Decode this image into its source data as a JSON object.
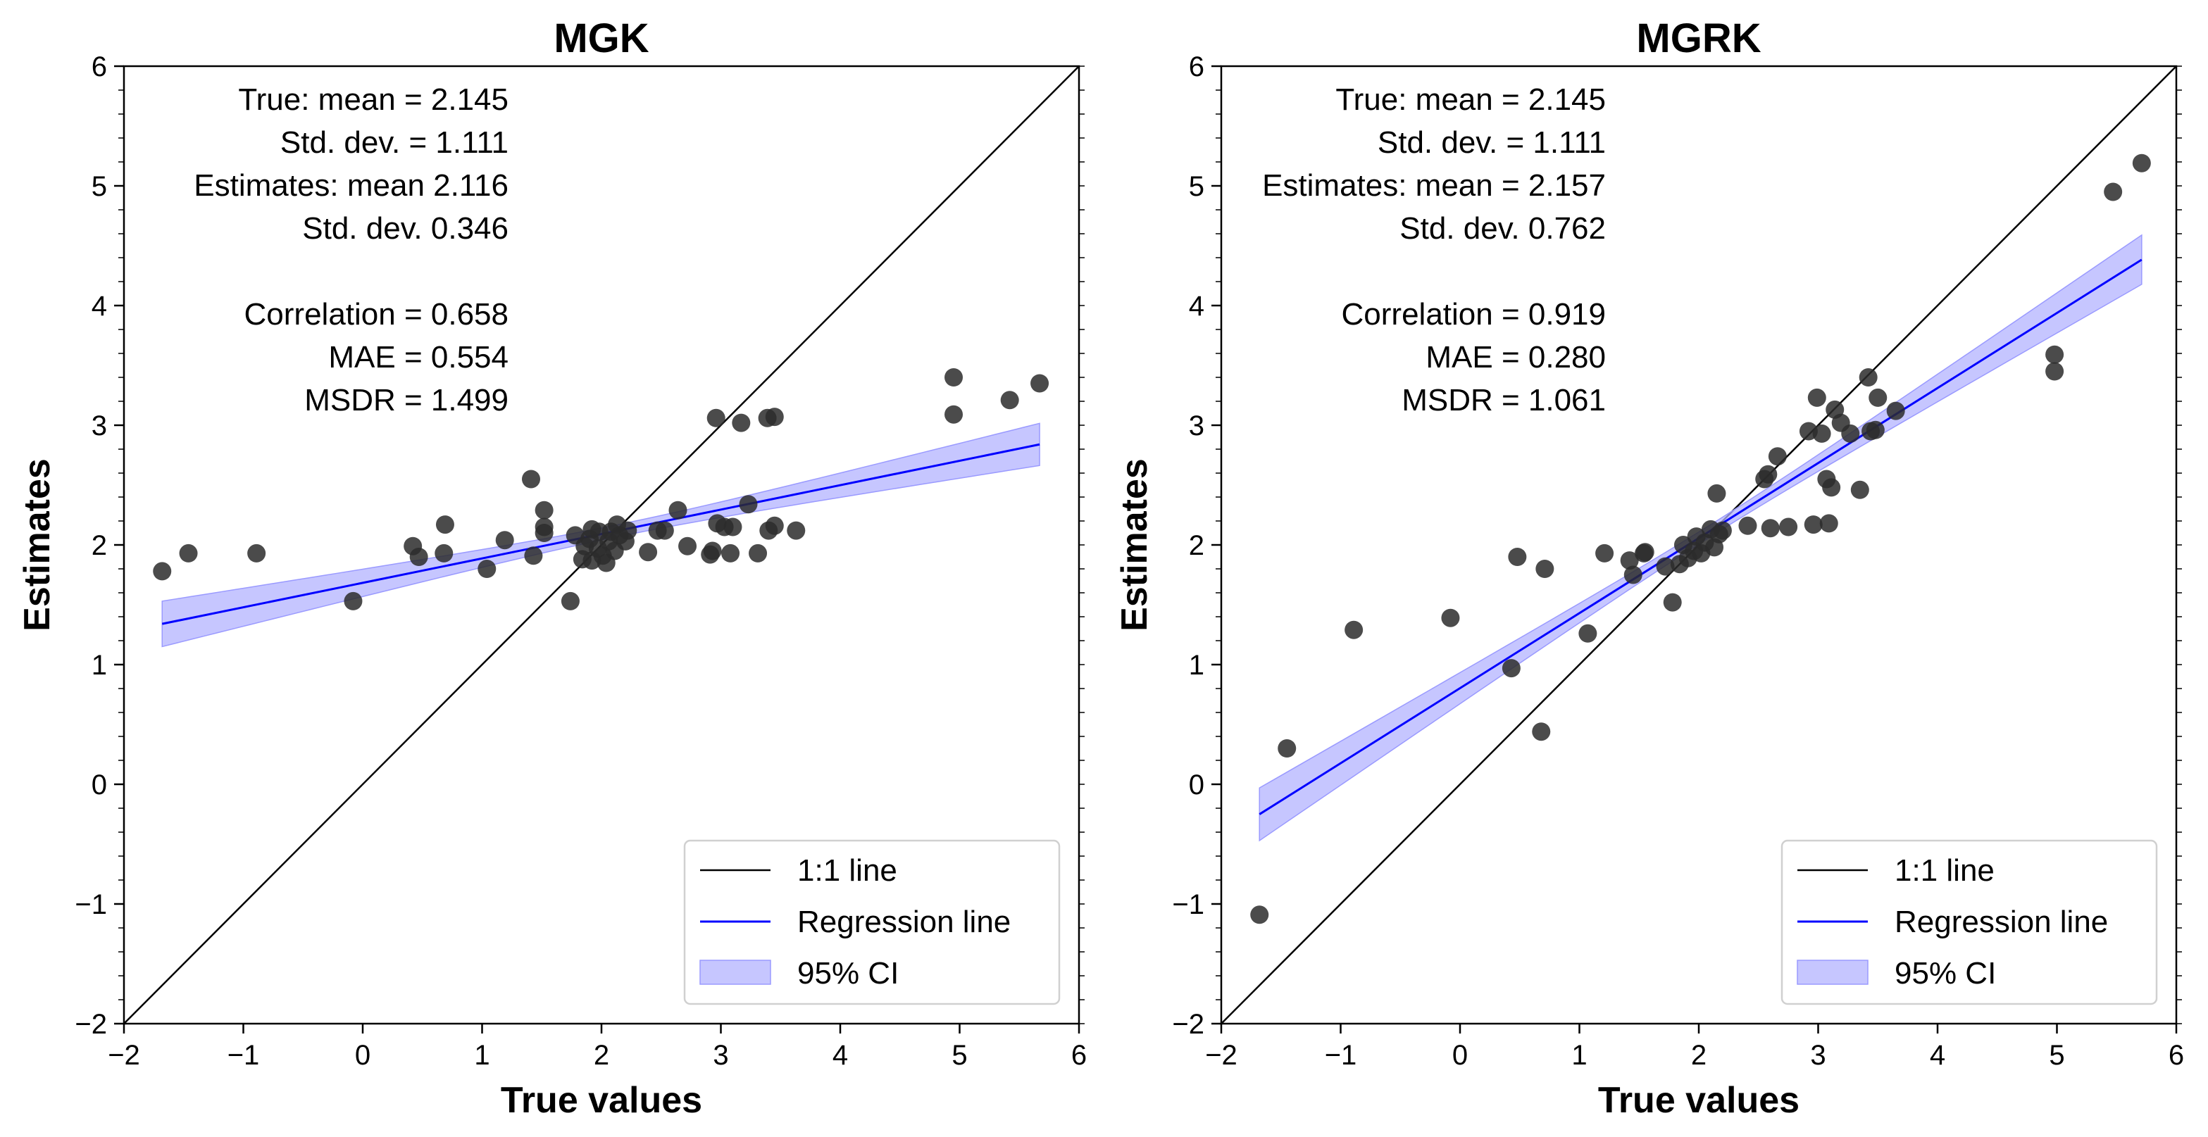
{
  "chart_data": [
    {
      "type": "scatter",
      "title": "MGK",
      "xlabel": "True values",
      "ylabel": "Estimates",
      "xlim": [
        -2,
        6
      ],
      "ylim": [
        -2,
        6
      ],
      "xticks": [
        -2,
        -1,
        0,
        1,
        2,
        3,
        4,
        5,
        6
      ],
      "yticks": [
        -2,
        -1,
        0,
        1,
        2,
        3,
        4,
        5,
        6
      ],
      "tick_labels": [
        "−2",
        "−1",
        "0",
        "1",
        "2",
        "3",
        "4",
        "5",
        "6"
      ],
      "annotation": [
        "True: mean = 2.145",
        "Std. dev. = 1.111",
        "Estimates: mean 2.116",
        "Std. dev. 0.346",
        "",
        "Correlation = 0.658",
        "MAE = 0.554",
        "MSDR = 1.499"
      ],
      "legend": {
        "placement": "lower-right",
        "entries": [
          "1:1 line",
          "Regression line",
          "95% CI"
        ]
      },
      "regression": {
        "slope": 0.204,
        "intercept": 1.683,
        "x_range": [
          -1.68,
          5.67
        ],
        "ci_halfwidth_end": 0.19,
        "ci_halfwidth_min": 0.05,
        "x_mean": 2.145
      },
      "points": [
        [
          -1.68,
          1.78
        ],
        [
          -1.46,
          1.93
        ],
        [
          -0.89,
          1.93
        ],
        [
          -0.08,
          1.53
        ],
        [
          0.42,
          1.99
        ],
        [
          0.47,
          1.9
        ],
        [
          0.69,
          2.17
        ],
        [
          0.68,
          1.93
        ],
        [
          1.04,
          1.8
        ],
        [
          1.19,
          2.04
        ],
        [
          1.41,
          2.55
        ],
        [
          1.43,
          1.91
        ],
        [
          1.52,
          2.29
        ],
        [
          1.52,
          2.15
        ],
        [
          1.52,
          2.1
        ],
        [
          1.74,
          1.53
        ],
        [
          1.78,
          2.08
        ],
        [
          1.86,
          1.99
        ],
        [
          1.92,
          1.87
        ],
        [
          1.98,
          2.11
        ],
        [
          2.01,
          1.91
        ],
        [
          2.06,
          2.03
        ],
        [
          2.11,
          1.95
        ],
        [
          2.15,
          2.08
        ],
        [
          2.13,
          2.17
        ],
        [
          2.2,
          2.03
        ],
        [
          2.04,
          1.85
        ],
        [
          1.84,
          1.88
        ],
        [
          1.9,
          2.05
        ],
        [
          1.97,
          1.97
        ],
        [
          2.22,
          2.12
        ],
        [
          1.92,
          2.13
        ],
        [
          2.08,
          2.11
        ],
        [
          2.39,
          1.94
        ],
        [
          2.47,
          2.12
        ],
        [
          2.53,
          2.12
        ],
        [
          2.64,
          2.29
        ],
        [
          2.72,
          1.99
        ],
        [
          2.91,
          1.92
        ],
        [
          2.93,
          1.95
        ],
        [
          2.96,
          3.06
        ],
        [
          2.97,
          2.18
        ],
        [
          3.03,
          2.15
        ],
        [
          3.08,
          1.93
        ],
        [
          3.1,
          2.15
        ],
        [
          3.17,
          3.02
        ],
        [
          3.23,
          2.34
        ],
        [
          3.31,
          1.93
        ],
        [
          3.39,
          3.06
        ],
        [
          3.4,
          2.12
        ],
        [
          3.45,
          3.07
        ],
        [
          3.45,
          2.16
        ],
        [
          3.63,
          2.12
        ],
        [
          4.95,
          3.4
        ],
        [
          4.95,
          3.09
        ],
        [
          5.42,
          3.21
        ],
        [
          5.67,
          3.35
        ]
      ]
    },
    {
      "type": "scatter",
      "title": "MGRK",
      "xlabel": "True values",
      "ylabel": "Estimates",
      "xlim": [
        -2,
        6
      ],
      "ylim": [
        -2,
        6
      ],
      "xticks": [
        -2,
        -1,
        0,
        1,
        2,
        3,
        4,
        5,
        6
      ],
      "yticks": [
        -2,
        -1,
        0,
        1,
        2,
        3,
        4,
        5,
        6
      ],
      "tick_labels": [
        "−2",
        "−1",
        "0",
        "1",
        "2",
        "3",
        "4",
        "5",
        "6"
      ],
      "annotation": [
        "True: mean = 2.145",
        "Std. dev. = 1.111",
        "Estimates: mean = 2.157",
        "Std. dev. 0.762",
        "",
        "Correlation = 0.919",
        "MAE = 0.280",
        "MSDR = 1.061"
      ],
      "legend": {
        "placement": "lower-right",
        "entries": [
          "1:1 line",
          "Regression line",
          "95% CI"
        ]
      },
      "regression": {
        "slope": 0.627,
        "intercept": 0.803,
        "x_range": [
          -1.68,
          5.71
        ],
        "ci_halfwidth_end": 0.22,
        "ci_halfwidth_min": 0.05,
        "x_mean": 2.145
      },
      "points": [
        [
          -1.68,
          -1.09
        ],
        [
          -1.45,
          0.3
        ],
        [
          -0.89,
          1.29
        ],
        [
          -0.08,
          1.39
        ],
        [
          0.43,
          0.97
        ],
        [
          0.48,
          1.9
        ],
        [
          0.71,
          1.8
        ],
        [
          0.68,
          0.44
        ],
        [
          1.07,
          1.26
        ],
        [
          1.21,
          1.93
        ],
        [
          1.42,
          1.87
        ],
        [
          1.45,
          1.75
        ],
        [
          1.54,
          1.93
        ],
        [
          1.55,
          1.94
        ],
        [
          1.78,
          1.52
        ],
        [
          1.72,
          1.82
        ],
        [
          1.84,
          1.84
        ],
        [
          1.87,
          2.0
        ],
        [
          1.91,
          1.89
        ],
        [
          1.96,
          1.95
        ],
        [
          1.98,
          2.07
        ],
        [
          2.02,
          1.93
        ],
        [
          2.05,
          2.02
        ],
        [
          2.1,
          2.13
        ],
        [
          2.13,
          1.98
        ],
        [
          2.17,
          2.09
        ],
        [
          2.2,
          2.12
        ],
        [
          2.15,
          2.43
        ],
        [
          2.41,
          2.16
        ],
        [
          2.6,
          2.14
        ],
        [
          2.75,
          2.15
        ],
        [
          2.96,
          2.17
        ],
        [
          3.09,
          2.18
        ],
        [
          2.55,
          2.55
        ],
        [
          2.58,
          2.59
        ],
        [
          2.66,
          2.74
        ],
        [
          2.99,
          3.23
        ],
        [
          2.92,
          2.95
        ],
        [
          3.03,
          2.93
        ],
        [
          3.14,
          3.13
        ],
        [
          3.19,
          3.02
        ],
        [
          3.27,
          2.93
        ],
        [
          3.07,
          2.55
        ],
        [
          3.11,
          2.48
        ],
        [
          3.35,
          2.46
        ],
        [
          3.42,
          3.4
        ],
        [
          3.5,
          3.23
        ],
        [
          3.44,
          2.95
        ],
        [
          3.48,
          2.96
        ],
        [
          3.65,
          3.12
        ],
        [
          4.98,
          3.59
        ],
        [
          4.98,
          3.45
        ],
        [
          5.47,
          4.95
        ],
        [
          5.71,
          5.19
        ]
      ]
    }
  ],
  "colors": {
    "points": "#2b2b2b",
    "regression": "#0000ff",
    "ci": "#b3b3ff",
    "identity": "#000000"
  }
}
